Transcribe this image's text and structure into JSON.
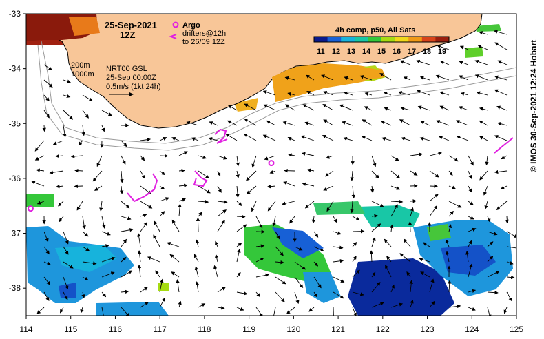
{
  "header": {
    "date": "25-Sep-2021",
    "time": "12Z"
  },
  "argo_legend": {
    "argo_label": "Argo",
    "drifters_label": "drifters@12h",
    "drifters_range": "to 26/09 12Z"
  },
  "colorbar": {
    "title": "4h comp, p50, All Sats",
    "ticks": [
      "11",
      "12",
      "13",
      "14",
      "15",
      "16",
      "17",
      "18",
      "19"
    ],
    "colors": [
      "#0a1a8c",
      "#1760d6",
      "#17b3dc",
      "#18c7a6",
      "#34c73a",
      "#a6dc12",
      "#f0d91a",
      "#f09a16",
      "#d8441a",
      "#9a1f0e"
    ]
  },
  "info": {
    "line1": "NRT00 GSL",
    "line2": "25-Sep 00:00Z",
    "line3": "0.5m/s (1kt 24h)",
    "depth1": "200m",
    "depth2": "1000m"
  },
  "axes": {
    "x_ticks": [
      "114",
      "115",
      "116",
      "117",
      "118",
      "119",
      "120",
      "121",
      "122",
      "123",
      "124",
      "125"
    ],
    "y_ticks": [
      "-33",
      "-34",
      "-35",
      "-36",
      "-37",
      "-38"
    ],
    "x_range": [
      114,
      125
    ],
    "y_range": [
      -38.5,
      -33
    ]
  },
  "credit": "© IMOS 30-Sep-2021 12:24 Hobart",
  "argo_floats": [
    [
      119.5,
      -35.72
    ],
    [
      114.1,
      -36.55
    ]
  ]
}
